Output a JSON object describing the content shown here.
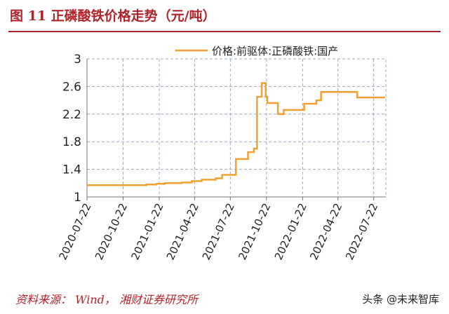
{
  "header": {
    "title": "图 11 正磷酸铁价格走势（元/吨）"
  },
  "footer": {
    "source": "资料来源： Wind， 湘财证券研究所",
    "watermark": "头条 @未来智库"
  },
  "colors": {
    "line": "#f0a030",
    "grid": "#9aa7c7",
    "title": "#b0232a"
  },
  "chart_data": {
    "type": "line",
    "title": "",
    "xlabel": "",
    "ylabel": "",
    "ylim": [
      1,
      3
    ],
    "yticks": [
      "1",
      "1.4",
      "1.8",
      "2.2",
      "2.6",
      "3"
    ],
    "xlim": [
      "2020-07-22",
      "2022-08-22"
    ],
    "xticks": [
      "2020-07-22",
      "2020-10-22",
      "2021-01-22",
      "2021-04-22",
      "2021-07-22",
      "2021-10-22",
      "2022-01-22",
      "2022-04-22",
      "2022-07-22"
    ],
    "grid": true,
    "legend_position": "top-right",
    "series": [
      {
        "name": "价格:前驱体:正磷酸铁:国产",
        "step": true,
        "points": [
          [
            "2020-07-22",
            1.17
          ],
          [
            "2020-12-20",
            1.18
          ],
          [
            "2021-01-15",
            1.19
          ],
          [
            "2021-02-05",
            1.2
          ],
          [
            "2021-03-20",
            1.21
          ],
          [
            "2021-04-15",
            1.23
          ],
          [
            "2021-05-10",
            1.25
          ],
          [
            "2021-06-15",
            1.27
          ],
          [
            "2021-07-01",
            1.32
          ],
          [
            "2021-08-05",
            1.55
          ],
          [
            "2021-09-05",
            1.65
          ],
          [
            "2021-09-20",
            1.7
          ],
          [
            "2021-09-28",
            2.45
          ],
          [
            "2021-10-10",
            2.65
          ],
          [
            "2021-10-20",
            2.45
          ],
          [
            "2021-10-24",
            2.36
          ],
          [
            "2021-11-20",
            2.2
          ],
          [
            "2021-12-05",
            2.26
          ],
          [
            "2022-01-26",
            2.35
          ],
          [
            "2022-02-26",
            2.4
          ],
          [
            "2022-03-10",
            2.52
          ],
          [
            "2022-06-10",
            2.44
          ],
          [
            "2022-08-20",
            2.44
          ]
        ]
      }
    ]
  }
}
